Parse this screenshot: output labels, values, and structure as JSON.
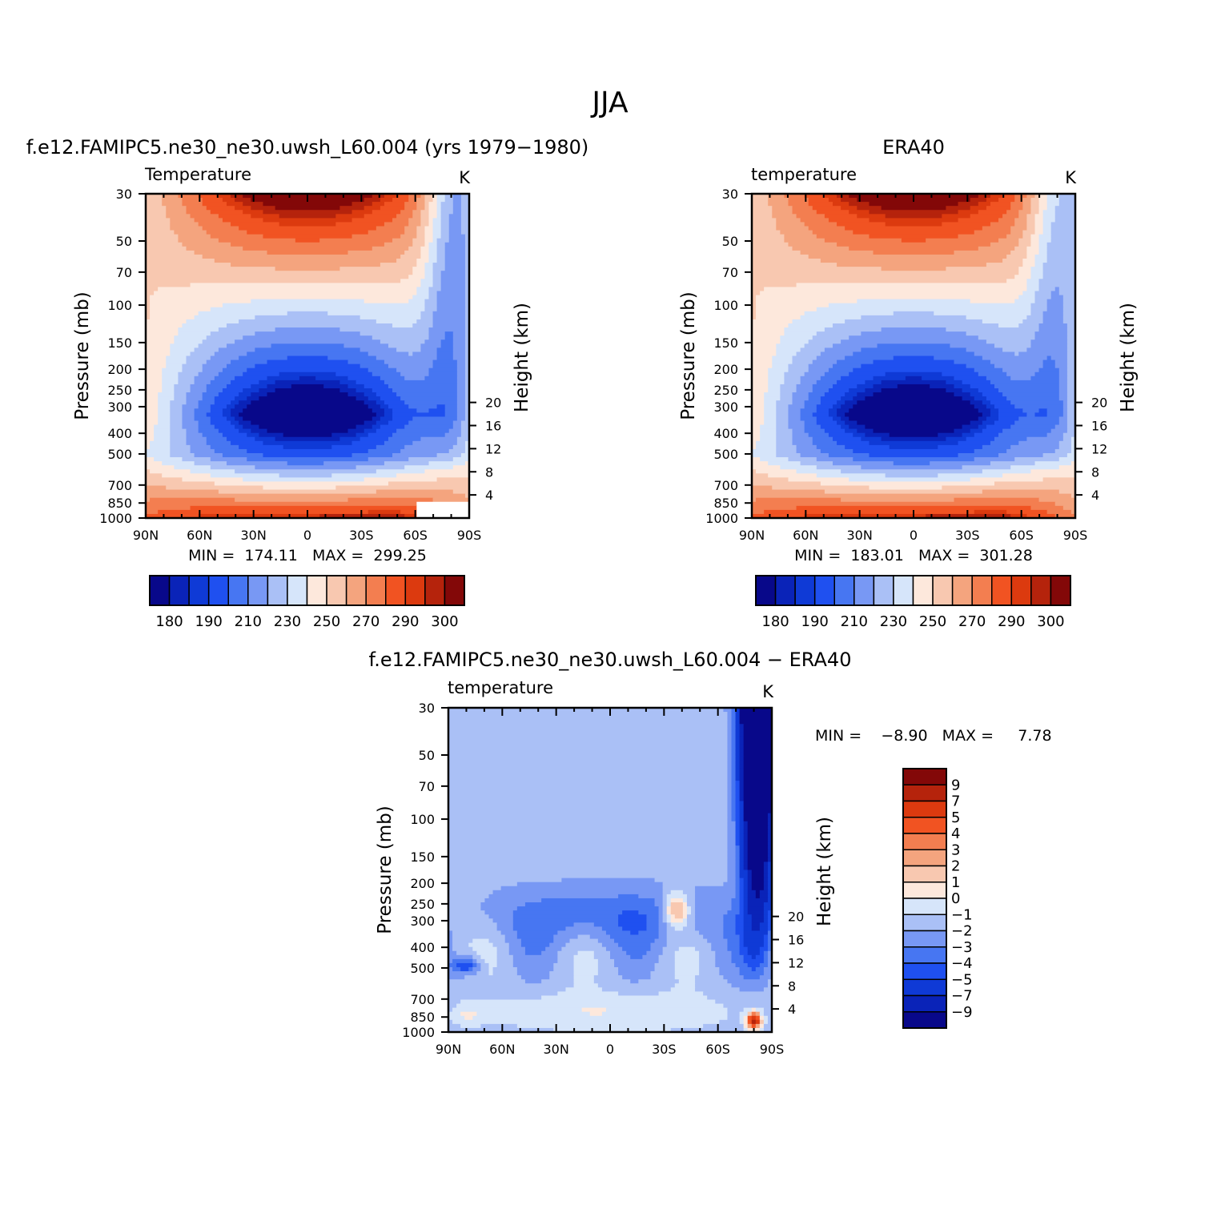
{
  "figure_title": "JJA",
  "colors": {
    "abs_palette": [
      "#08088a",
      "#0a23b8",
      "#0f3ad6",
      "#1f50f0",
      "#4776f2",
      "#7898f4",
      "#aac0f6",
      "#d6e5fa",
      "#fde8dc",
      "#f8c8b0",
      "#f4a47e",
      "#f37e50",
      "#f15322",
      "#dc3a0f",
      "#b5230c",
      "#830808"
    ],
    "diff_palette": [
      "#08088a",
      "#0a23b8",
      "#0f3ad6",
      "#1f50f0",
      "#4776f2",
      "#7898f4",
      "#aac0f6",
      "#d6e5fa",
      "#fde8dc",
      "#f8c8b0",
      "#f4a47e",
      "#f37e50",
      "#f15322",
      "#dc3a0f",
      "#b5230c",
      "#830808"
    ]
  },
  "chart_data": [
    {
      "type": "heatmap",
      "case_title": "f.e12.FAMIPC5.ne30_ne30.uwsh_L60.004 (yrs 1979−1980)",
      "left_label": "Temperature",
      "units": "K",
      "ylabel": "Pressure (mb)",
      "ylabel_right": "Height (km)",
      "x_ticks": [
        "90N",
        "60N",
        "30N",
        "0",
        "30S",
        "60S",
        "90S"
      ],
      "y_ticks": [
        "30",
        "50",
        "70",
        "100",
        "150",
        "200",
        "250",
        "300",
        "400",
        "500",
        "700",
        "850",
        "1000"
      ],
      "y_ticks_right": [
        "20",
        "16",
        "12",
        "8",
        "4"
      ],
      "ylim": [
        1000,
        30
      ],
      "ylog": true,
      "stats_text": "MIN =  174.11   MAX =  299.25",
      "stats": {
        "min": 174.11,
        "max": 299.25
      },
      "colorbar_labels": [
        "180",
        "190",
        "210",
        "230",
        "250",
        "270",
        "290",
        "300"
      ],
      "colorbar_levels": [
        180,
        185,
        190,
        200,
        210,
        220,
        230,
        240,
        250,
        260,
        270,
        280,
        290,
        295,
        300
      ]
    },
    {
      "type": "heatmap",
      "case_title": "ERA40",
      "left_label": "temperature",
      "units": "K",
      "ylabel": "Pressure (mb)",
      "ylabel_right": "Height (km)",
      "x_ticks": [
        "90N",
        "60N",
        "30N",
        "0",
        "30S",
        "60S",
        "90S"
      ],
      "y_ticks": [
        "30",
        "50",
        "70",
        "100",
        "150",
        "200",
        "250",
        "300",
        "400",
        "500",
        "700",
        "850",
        "1000"
      ],
      "y_ticks_right": [
        "20",
        "16",
        "12",
        "8",
        "4"
      ],
      "ylim": [
        1000,
        30
      ],
      "ylog": true,
      "stats_text": "MIN =  183.01   MAX =  301.28",
      "stats": {
        "min": 183.01,
        "max": 301.28
      },
      "colorbar_labels": [
        "180",
        "190",
        "210",
        "230",
        "250",
        "270",
        "290",
        "300"
      ],
      "colorbar_levels": [
        180,
        185,
        190,
        200,
        210,
        220,
        230,
        240,
        250,
        260,
        270,
        280,
        290,
        295,
        300
      ]
    },
    {
      "type": "heatmap",
      "case_title": "f.e12.FAMIPC5.ne30_ne30.uwsh_L60.004 − ERA40",
      "left_label": "temperature",
      "units": "K",
      "ylabel": "Pressure (mb)",
      "ylabel_right": "Height (km)",
      "x_ticks": [
        "90N",
        "60N",
        "30N",
        "0",
        "30S",
        "60S",
        "90S"
      ],
      "y_ticks": [
        "30",
        "50",
        "70",
        "100",
        "150",
        "200",
        "250",
        "300",
        "400",
        "500",
        "700",
        "850",
        "1000"
      ],
      "y_ticks_right": [
        "20",
        "16",
        "12",
        "8",
        "4"
      ],
      "ylim": [
        1000,
        30
      ],
      "ylog": true,
      "stats_text": "MIN =    −8.90   MAX =     7.78",
      "stats": {
        "min": -8.9,
        "max": 7.78
      },
      "colorbar_labels": [
        "9",
        "7",
        "5",
        "4",
        "3",
        "2",
        "1",
        "0",
        "−1",
        "−2",
        "−3",
        "−4",
        "−5",
        "−7",
        "−9"
      ],
      "colorbar_levels": [
        -9,
        -7,
        -5,
        -4,
        -3,
        -2,
        -1,
        0,
        1,
        2,
        3,
        4,
        5,
        7,
        9
      ]
    }
  ]
}
